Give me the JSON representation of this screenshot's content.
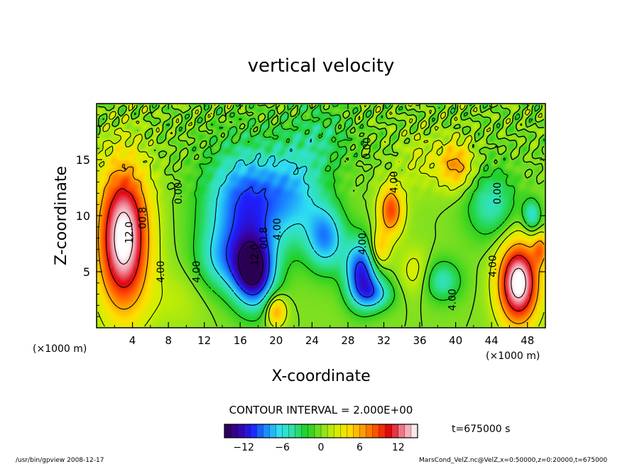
{
  "chart_data": {
    "type": "heatmap",
    "title": "vertical velocity",
    "xlabel": "X-coordinate",
    "ylabel": "Z-coordinate",
    "x_unit": "(×1000 m)",
    "y_unit": "(×1000 m)",
    "xlim": [
      0,
      50
    ],
    "ylim": [
      0,
      20
    ],
    "x_ticks": [
      "4",
      "8",
      "12",
      "16",
      "20",
      "24",
      "28",
      "32",
      "36",
      "40",
      "44",
      "48"
    ],
    "y_ticks": [
      "5",
      "10",
      "15"
    ],
    "contour_interval_text": "CONTOUR INTERVAL = 2.000E+00",
    "colorbar_ticks": [
      "−12",
      "−6",
      "0",
      "6",
      "12"
    ],
    "colorbar_range": [
      -15,
      15
    ],
    "time_label": "t=675000 s",
    "contour_labels": [
      {
        "text": "12.0",
        "x": 4.0,
        "y": 8.5
      },
      {
        "text": "00.8",
        "x": 5.5,
        "y": 9.8
      },
      {
        "text": "4.00",
        "x": 7.5,
        "y": 5.0
      },
      {
        "text": "4.00",
        "x": 11.5,
        "y": 5.0
      },
      {
        "text": "12.0",
        "x": 18.0,
        "y": 6.5
      },
      {
        "text": "00.8",
        "x": 19.0,
        "y": 8.0
      },
      {
        "text": "4.00",
        "x": 20.5,
        "y": 8.8
      },
      {
        "text": "4.00",
        "x": 30.0,
        "y": 7.5
      },
      {
        "text": "4.00",
        "x": 33.5,
        "y": 13.0
      },
      {
        "text": "4.00",
        "x": 44.5,
        "y": 5.5
      },
      {
        "text": "4.00",
        "x": 40.0,
        "y": 2.5
      },
      {
        "text": "0.00",
        "x": 30.5,
        "y": 16.0
      },
      {
        "text": "0.00",
        "x": 9.5,
        "y": 12.0
      },
      {
        "text": "0.00",
        "x": 45.0,
        "y": 12.0
      }
    ],
    "blobs": [
      {
        "x": 3.0,
        "y": 8.0,
        "sx": 2.0,
        "sy": 4.5,
        "amp": 16
      },
      {
        "x": 32.8,
        "y": 10.5,
        "sx": 1.0,
        "sy": 1.6,
        "amp": 9
      },
      {
        "x": 47.0,
        "y": 4.0,
        "sx": 1.6,
        "sy": 2.6,
        "amp": 16
      },
      {
        "x": 40.0,
        "y": 14.5,
        "sx": 1.4,
        "sy": 1.5,
        "amp": 7
      },
      {
        "x": 20.0,
        "y": 1.5,
        "sx": 0.8,
        "sy": 1.0,
        "amp": 7
      },
      {
        "x": 31.5,
        "y": 7.0,
        "sx": 0.8,
        "sy": 1.2,
        "amp": 6
      },
      {
        "x": 35.5,
        "y": 5.0,
        "sx": 1.2,
        "sy": 1.5,
        "amp": 3
      },
      {
        "x": 49.5,
        "y": 7.0,
        "sx": 0.6,
        "sy": 1.0,
        "amp": 6
      },
      {
        "x": 17.5,
        "y": 5.0,
        "sx": 1.6,
        "sy": 2.2,
        "amp": -14
      },
      {
        "x": 16.5,
        "y": 11.0,
        "sx": 3.0,
        "sy": 3.5,
        "amp": -10
      },
      {
        "x": 14.0,
        "y": 6.0,
        "sx": 2.0,
        "sy": 2.0,
        "amp": -5
      },
      {
        "x": 22.0,
        "y": 12.0,
        "sx": 2.5,
        "sy": 3.0,
        "amp": -6
      },
      {
        "x": 25.5,
        "y": 8.0,
        "sx": 1.5,
        "sy": 2.0,
        "amp": -8
      },
      {
        "x": 29.5,
        "y": 5.0,
        "sx": 1.3,
        "sy": 2.0,
        "amp": -11
      },
      {
        "x": 31.0,
        "y": 3.0,
        "sx": 1.5,
        "sy": 1.0,
        "amp": -6
      },
      {
        "x": 38.5,
        "y": 4.2,
        "sx": 1.5,
        "sy": 1.3,
        "amp": -5
      },
      {
        "x": 44.0,
        "y": 11.0,
        "sx": 2.0,
        "sy": 2.2,
        "amp": -5
      },
      {
        "x": 48.5,
        "y": 10.0,
        "sx": 0.7,
        "sy": 1.0,
        "amp": -6
      },
      {
        "x": 25.0,
        "y": 17.0,
        "sx": 2.5,
        "sy": 2.0,
        "amp": -3
      },
      {
        "x": 9.0,
        "y": 2.5,
        "sx": 2.5,
        "sy": 2.0,
        "amp": 1.5
      },
      {
        "x": 36.0,
        "y": 15.0,
        "sx": 1.5,
        "sy": 2.0,
        "amp": 2
      }
    ]
  },
  "footer": {
    "program": "/usr/bin/gpview   2008-12-17",
    "source": "MarsCond_VelZ.nc@VelZ,x=0:50000,z=0:20000,t=675000"
  },
  "colors": {
    "axis": "#000000",
    "background": "#ffffff",
    "colormap": [
      "#2a0050",
      "#3a00a0",
      "#1e20ff",
      "#1a8cff",
      "#30e0f0",
      "#30e0a0",
      "#20d020",
      "#80e020",
      "#d0f000",
      "#ffe000",
      "#ffa000",
      "#ff5000",
      "#e00010",
      "#f090a0",
      "#ffffff"
    ]
  }
}
